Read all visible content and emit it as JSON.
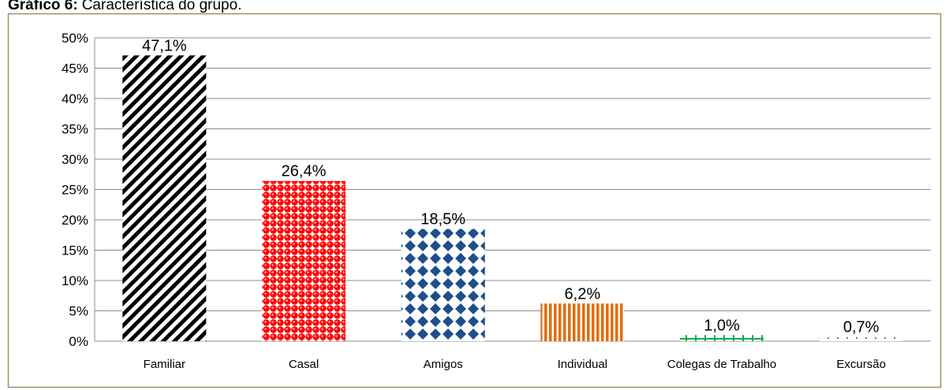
{
  "chart_data": {
    "type": "bar",
    "title_label": "Gráfico 6:",
    "title": "Característica do grupo.",
    "categories": [
      "Familiar",
      "Casal",
      "Amigos",
      "Individual",
      "Colegas de Trabalho",
      "Excursão"
    ],
    "values": [
      47.1,
      26.4,
      18.5,
      6.2,
      1.0,
      0.7
    ],
    "value_labels": [
      "47,1%",
      "26,4%",
      "18,5%",
      "6,2%",
      "1,0%",
      "0,7%"
    ],
    "colors": [
      "#000000",
      "#ff0000",
      "#1f4e8c",
      "#e36c0a",
      "#00b050",
      "#4f81bd"
    ],
    "ylim": [
      0,
      50
    ],
    "yticks": [
      {
        "value": 0,
        "label": "0%"
      },
      {
        "value": 5,
        "label": "5%"
      },
      {
        "value": 10,
        "label": "10%"
      },
      {
        "value": 15,
        "label": "15%"
      },
      {
        "value": 20,
        "label": "20%"
      },
      {
        "value": 25,
        "label": "25%"
      },
      {
        "value": 30,
        "label": "30%"
      },
      {
        "value": 35,
        "label": "35%"
      },
      {
        "value": 40,
        "label": "40%"
      },
      {
        "value": 45,
        "label": "45%"
      },
      {
        "value": 50,
        "label": "50%"
      }
    ],
    "grid": true
  }
}
